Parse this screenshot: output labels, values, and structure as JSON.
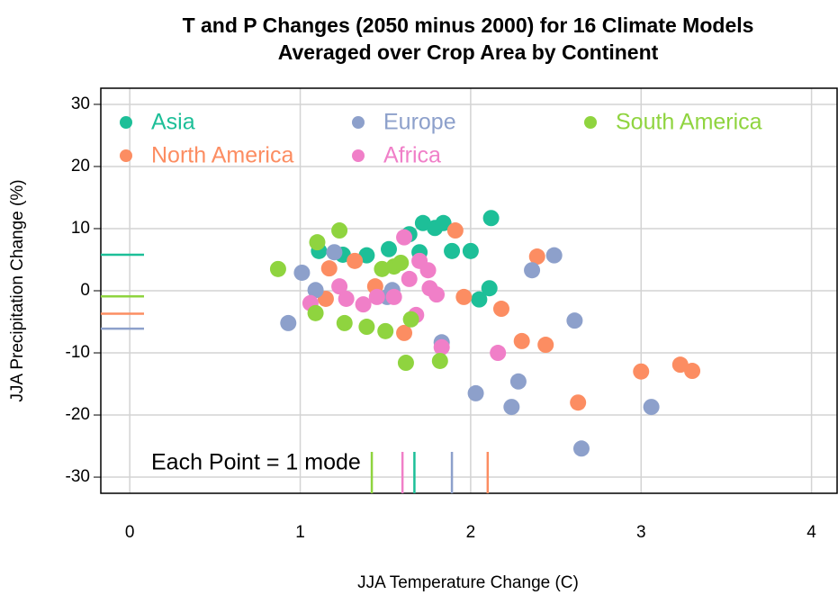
{
  "chart_data": {
    "type": "scatter",
    "title": "T and P Changes (2050 minus 2000) for 16 Climate Models",
    "subtitle": "Averaged over Crop Area by Continent",
    "x_label": "JJA Temperature Change (C)",
    "y_label": "JJA Precipitation Change (%)",
    "annotation": "Each Point = 1 mode",
    "xlim": [
      -0.17,
      4.15
    ],
    "ylim": [
      -32.6,
      32.6
    ],
    "xticks": [
      0,
      1,
      2,
      3,
      4
    ],
    "yticks": [
      -30,
      -20,
      -10,
      0,
      10,
      20,
      30
    ],
    "grid": true,
    "legend": "top",
    "series": [
      {
        "name": "Asia",
        "color": "#1dbf98",
        "mean_x": 1.67,
        "mean_y": 5.8,
        "x": [
          1.11,
          1.25,
          1.39,
          1.52,
          1.64,
          1.72,
          1.7,
          1.79,
          1.84,
          1.89,
          2.0,
          2.12,
          2.11,
          2.05
        ],
        "values": [
          6.4,
          5.8,
          5.7,
          6.7,
          9.1,
          10.9,
          6.2,
          10.1,
          10.9,
          6.4,
          6.4,
          11.7,
          0.4,
          -1.4
        ]
      },
      {
        "name": "North America",
        "color": "#fc8d62",
        "mean_x": 2.1,
        "mean_y": -3.7,
        "x": [
          1.17,
          1.15,
          1.32,
          1.44,
          1.61,
          1.91,
          1.96,
          2.18,
          2.3,
          2.39,
          2.44,
          2.63,
          3.0,
          3.23,
          3.3
        ],
        "values": [
          3.6,
          -1.3,
          4.8,
          0.7,
          -6.8,
          9.7,
          -1.0,
          -2.9,
          -8.1,
          5.5,
          -8.7,
          -18.0,
          -13.0,
          -11.9,
          -12.9
        ]
      },
      {
        "name": "Europe",
        "color": "#8da0cb",
        "mean_x": 1.89,
        "mean_y": -6.1,
        "x": [
          0.93,
          1.01,
          1.09,
          1.2,
          1.51,
          1.54,
          1.83,
          2.03,
          2.24,
          2.28,
          2.36,
          2.49,
          2.61,
          2.65,
          3.06
        ],
        "values": [
          -5.2,
          2.9,
          0.1,
          6.2,
          -1.0,
          0.1,
          -8.3,
          -16.5,
          -18.7,
          -14.6,
          3.3,
          5.7,
          -4.8,
          -25.4,
          -18.7
        ]
      },
      {
        "name": "Africa",
        "color": "#f07fc8",
        "mean_x": 1.6,
        "mean_y": -0.9,
        "x": [
          1.06,
          1.23,
          1.27,
          1.37,
          1.45,
          1.55,
          1.61,
          1.64,
          1.68,
          1.7,
          1.75,
          1.76,
          1.8,
          1.83,
          2.16
        ],
        "values": [
          -2.0,
          0.7,
          -1.3,
          -2.2,
          -1.0,
          -1.0,
          8.6,
          1.9,
          -3.9,
          4.8,
          3.3,
          0.4,
          -0.6,
          -9.1,
          -10.0
        ]
      },
      {
        "name": "South America",
        "color": "#8fd43f",
        "mean_x": 1.42,
        "mean_y": -0.9,
        "x": [
          0.87,
          1.1,
          1.09,
          1.23,
          1.26,
          1.39,
          1.48,
          1.5,
          1.55,
          1.59,
          1.62,
          1.65,
          1.82
        ],
        "values": [
          3.5,
          7.8,
          -3.6,
          9.7,
          -5.2,
          -5.8,
          3.5,
          -6.5,
          3.9,
          4.5,
          -11.6,
          -4.6,
          -11.3
        ]
      }
    ]
  }
}
